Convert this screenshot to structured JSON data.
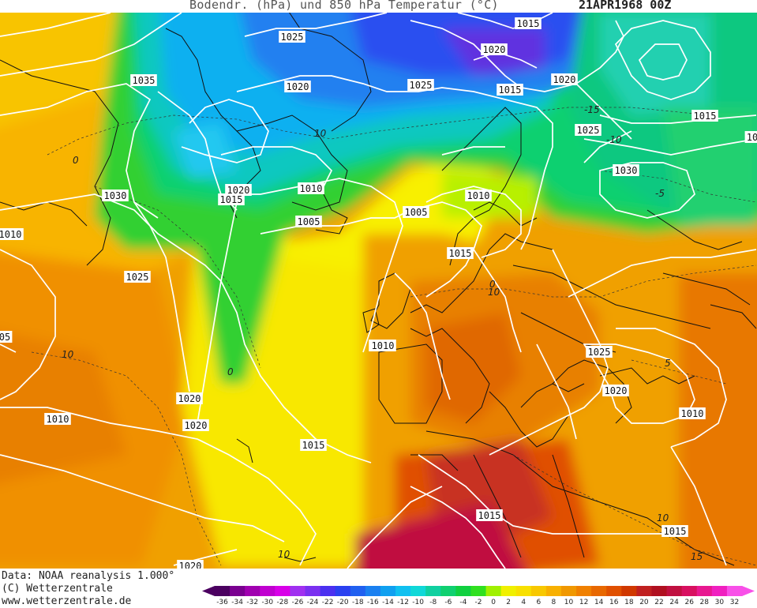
{
  "header": {
    "title": "Bodendr. (hPa) und 850 hPa Temperatur (°C)",
    "date": "21APR1968 00Z"
  },
  "footer": {
    "data_source": "Data: NOAA reanalysis 1.000°",
    "copyright": "(C) Wetterzentrale",
    "website": "www.wetterzentrale.de"
  },
  "legend": {
    "ticks": [
      "-36",
      "-34",
      "-32",
      "-30",
      "-28",
      "-26",
      "-24",
      "-22",
      "-20",
      "-18",
      "-16",
      "-14",
      "-12",
      "-10",
      "-8",
      "-6",
      "-4",
      "-2",
      "0",
      "2",
      "4",
      "6",
      "8",
      "10",
      "12",
      "14",
      "16",
      "18",
      "20",
      "22",
      "24",
      "26",
      "28",
      "30",
      "32"
    ],
    "colors": [
      "#4b0060",
      "#7a0090",
      "#a000b0",
      "#c000d0",
      "#d800e8",
      "#a030f0",
      "#7a30f0",
      "#4b30f0",
      "#2a40f0",
      "#2060f0",
      "#1a80f0",
      "#10a0f0",
      "#10c0f0",
      "#10d8d8",
      "#10d0a0",
      "#10d070",
      "#10d040",
      "#30e020",
      "#a0f000",
      "#f0f000",
      "#f8e000",
      "#f8c800",
      "#f8b000",
      "#f09800",
      "#f08000",
      "#e86800",
      "#e05000",
      "#d03800",
      "#c02020",
      "#b01020",
      "#c01040",
      "#d81060",
      "#e81890",
      "#f020c0",
      "#f850e8"
    ]
  },
  "isobar_labels": [
    {
      "text": "1025"
    },
    {
      "text": "1015"
    },
    {
      "text": "1020"
    },
    {
      "text": "1035"
    },
    {
      "text": "1020"
    },
    {
      "text": "1025"
    },
    {
      "text": "1015"
    },
    {
      "text": "1020"
    },
    {
      "text": "1015"
    },
    {
      "text": "1025"
    },
    {
      "text": "1030"
    },
    {
      "text": "1020"
    },
    {
      "text": "1015"
    },
    {
      "text": "1010"
    },
    {
      "text": "1010"
    },
    {
      "text": "1005"
    },
    {
      "text": "1005"
    },
    {
      "text": "1030"
    },
    {
      "text": "1015"
    },
    {
      "text": "1010"
    },
    {
      "text": "1025"
    },
    {
      "text": "1015"
    },
    {
      "text": "1010"
    },
    {
      "text": "1025"
    },
    {
      "text": "1020"
    },
    {
      "text": "1010"
    },
    {
      "text": "1020"
    },
    {
      "text": "1010"
    },
    {
      "text": "1020"
    },
    {
      "text": "1015"
    },
    {
      "text": "1015"
    },
    {
      "text": "1015"
    },
    {
      "text": "1020"
    },
    {
      "text": "05"
    },
    {
      "text": "10"
    }
  ],
  "temperature_labels": [
    {
      "text": "10"
    },
    {
      "text": "0"
    },
    {
      "text": "-15"
    },
    {
      "text": "-10"
    },
    {
      "text": "-5"
    },
    {
      "text": "10"
    },
    {
      "text": "5"
    },
    {
      "text": "10"
    },
    {
      "text": "10"
    },
    {
      "text": "15"
    },
    {
      "text": "10"
    },
    {
      "text": "0"
    },
    {
      "text": "0"
    }
  ]
}
